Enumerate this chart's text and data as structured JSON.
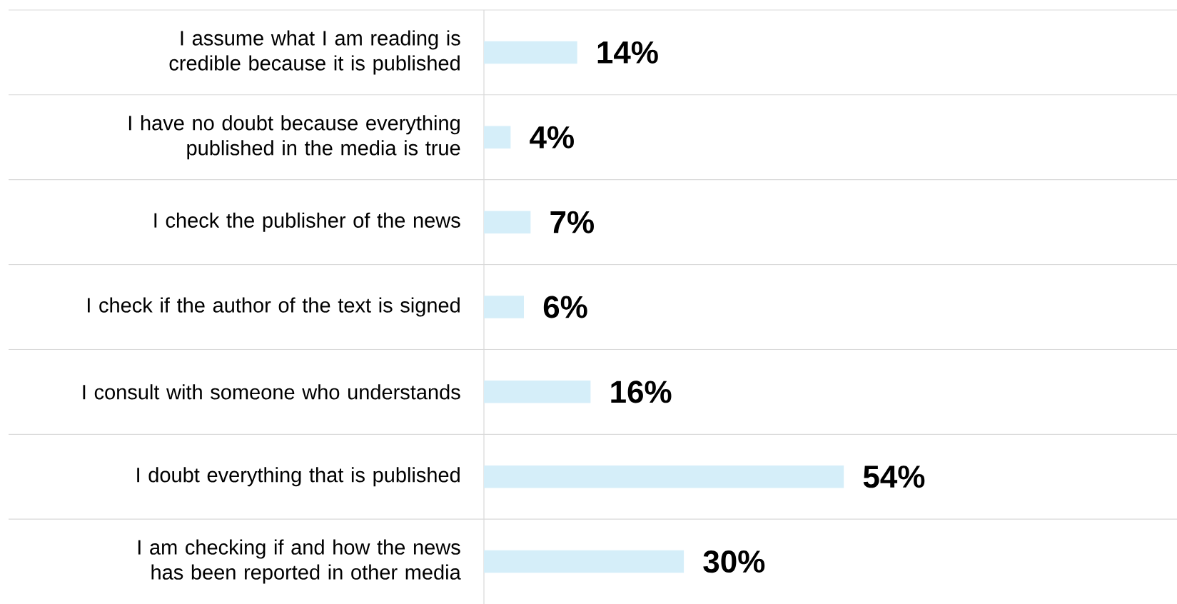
{
  "chart_data": {
    "type": "bar",
    "orientation": "horizontal",
    "categories": [
      "I assume what I am reading is credible because it is published",
      "I have no doubt because everything published in the media is true",
      "I check the publisher of the news",
      "I check if the author of the text is signed",
      "I consult with someone who understands",
      "I doubt everything that is published",
      "I am checking if and how the news has been reported in other media"
    ],
    "values": [
      14,
      4,
      7,
      6,
      16,
      54,
      30
    ],
    "value_labels": [
      "14%",
      "4%",
      "7%",
      "6%",
      "16%",
      "54%",
      "30%"
    ],
    "color": "#d5eef9",
    "xlim": [
      0,
      104
    ],
    "grid": "y"
  }
}
